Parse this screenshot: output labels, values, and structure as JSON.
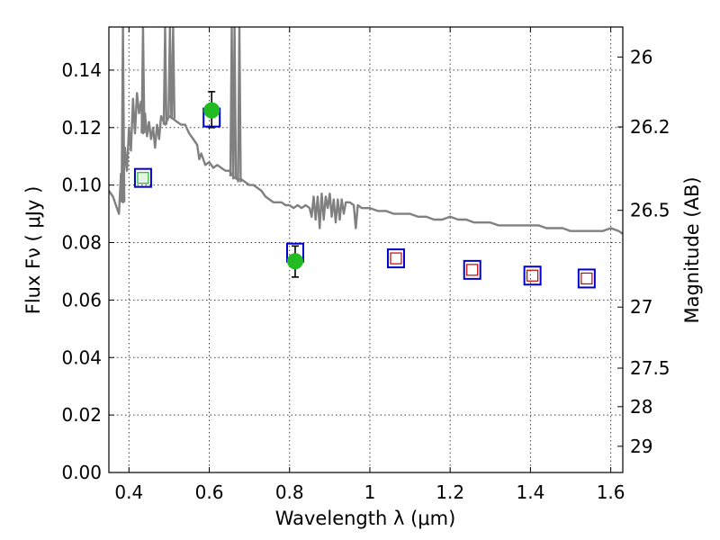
{
  "chart_data": {
    "type": "scatter",
    "xlabel": "Wavelength  λ (μm)",
    "ylabel": "Flux  Fν  ( μJy )",
    "y2label": "Magnitude (AB)",
    "xlim": [
      0.35,
      1.63
    ],
    "ylim": [
      0.0,
      0.155
    ],
    "x_ticks": [
      0.4,
      0.6,
      0.8,
      1.0,
      1.2,
      1.4,
      1.6
    ],
    "x_tick_labels": [
      "0.4",
      "0.6",
      "0.8",
      "1",
      "1.2",
      "1.4",
      "1.6"
    ],
    "y_ticks": [
      0.0,
      0.02,
      0.04,
      0.06,
      0.08,
      0.1,
      0.12,
      0.14
    ],
    "y_tick_labels": [
      "0.00",
      "0.02",
      "0.04",
      "0.06",
      "0.08",
      "0.10",
      "0.12",
      "0.14"
    ],
    "mag_ticks": [
      26,
      26.2,
      26.5,
      27,
      27.5,
      28,
      29
    ],
    "mag_tick_labels": [
      "26",
      "26.2",
      "26.5",
      "27",
      "27.5",
      "28",
      "29"
    ],
    "grid": true,
    "colors": {
      "model": "#808080",
      "observed": "#22bb22",
      "model_photometry": "#0000cc",
      "upper_limits": "#cc0000",
      "errorbar": "#000000"
    },
    "series": [
      {
        "kind": "model_spectrum",
        "points": [
          [
            0.35,
            0.098
          ],
          [
            0.36,
            0.096
          ],
          [
            0.37,
            0.092
          ],
          [
            0.375,
            0.09
          ],
          [
            0.38,
            0.104
          ],
          [
            0.385,
            0.094
          ],
          [
            0.39,
            0.113
          ],
          [
            0.395,
            0.105
          ],
          [
            0.4,
            0.12
          ],
          [
            0.405,
            0.112
          ],
          [
            0.41,
            0.13
          ],
          [
            0.415,
            0.118
          ],
          [
            0.42,
            0.132
          ],
          [
            0.425,
            0.125
          ],
          [
            0.43,
            0.129
          ],
          [
            0.435,
            0.118
          ],
          [
            0.44,
            0.125
          ],
          [
            0.445,
            0.117
          ],
          [
            0.45,
            0.122
          ],
          [
            0.455,
            0.116
          ],
          [
            0.46,
            0.12
          ],
          [
            0.465,
            0.113
          ],
          [
            0.47,
            0.121
          ],
          [
            0.475,
            0.116
          ],
          [
            0.48,
            0.124
          ],
          [
            0.49,
            0.121
          ],
          [
            0.5,
            0.124
          ],
          [
            0.51,
            0.123
          ],
          [
            0.52,
            0.122
          ],
          [
            0.53,
            0.121
          ],
          [
            0.54,
            0.121
          ],
          [
            0.55,
            0.118
          ],
          [
            0.56,
            0.116
          ],
          [
            0.57,
            0.114
          ],
          [
            0.575,
            0.109
          ],
          [
            0.58,
            0.111
          ],
          [
            0.59,
            0.107
          ],
          [
            0.6,
            0.108
          ],
          [
            0.61,
            0.106
          ],
          [
            0.62,
            0.107
          ],
          [
            0.63,
            0.106
          ],
          [
            0.64,
            0.105
          ],
          [
            0.65,
            0.105
          ],
          [
            0.66,
            0.103
          ],
          [
            0.67,
            0.102
          ],
          [
            0.68,
            0.102
          ],
          [
            0.69,
            0.101
          ],
          [
            0.7,
            0.1
          ],
          [
            0.71,
            0.1
          ],
          [
            0.72,
            0.099
          ],
          [
            0.73,
            0.098
          ],
          [
            0.74,
            0.096
          ],
          [
            0.75,
            0.095
          ],
          [
            0.76,
            0.094
          ],
          [
            0.77,
            0.094
          ],
          [
            0.78,
            0.094
          ],
          [
            0.79,
            0.093
          ],
          [
            0.8,
            0.093
          ],
          [
            0.81,
            0.092
          ],
          [
            0.82,
            0.093
          ],
          [
            0.83,
            0.092
          ],
          [
            0.84,
            0.093
          ],
          [
            0.85,
            0.092
          ],
          [
            0.855,
            0.089
          ],
          [
            0.86,
            0.096
          ],
          [
            0.865,
            0.088
          ],
          [
            0.87,
            0.096
          ],
          [
            0.875,
            0.085
          ],
          [
            0.88,
            0.097
          ],
          [
            0.885,
            0.088
          ],
          [
            0.89,
            0.096
          ],
          [
            0.895,
            0.092
          ],
          [
            0.9,
            0.097
          ],
          [
            0.905,
            0.089
          ],
          [
            0.91,
            0.095
          ],
          [
            0.915,
            0.087
          ],
          [
            0.92,
            0.095
          ],
          [
            0.925,
            0.088
          ],
          [
            0.93,
            0.095
          ],
          [
            0.935,
            0.09
          ],
          [
            0.94,
            0.094
          ],
          [
            0.95,
            0.094
          ],
          [
            0.96,
            0.093
          ],
          [
            0.965,
            0.085
          ],
          [
            0.97,
            0.093
          ],
          [
            0.98,
            0.092
          ],
          [
            1.0,
            0.092
          ],
          [
            1.02,
            0.091
          ],
          [
            1.04,
            0.091
          ],
          [
            1.06,
            0.09
          ],
          [
            1.08,
            0.09
          ],
          [
            1.1,
            0.09
          ],
          [
            1.12,
            0.089
          ],
          [
            1.14,
            0.089
          ],
          [
            1.16,
            0.088
          ],
          [
            1.18,
            0.088
          ],
          [
            1.2,
            0.089
          ],
          [
            1.22,
            0.088
          ],
          [
            1.24,
            0.088
          ],
          [
            1.26,
            0.087
          ],
          [
            1.28,
            0.087
          ],
          [
            1.3,
            0.087
          ],
          [
            1.32,
            0.086
          ],
          [
            1.34,
            0.086
          ],
          [
            1.36,
            0.086
          ],
          [
            1.38,
            0.086
          ],
          [
            1.4,
            0.086
          ],
          [
            1.42,
            0.086
          ],
          [
            1.44,
            0.085
          ],
          [
            1.46,
            0.085
          ],
          [
            1.48,
            0.085
          ],
          [
            1.5,
            0.084
          ],
          [
            1.52,
            0.084
          ],
          [
            1.54,
            0.084
          ],
          [
            1.56,
            0.084
          ],
          [
            1.58,
            0.084
          ],
          [
            1.6,
            0.085
          ],
          [
            1.62,
            0.084
          ],
          [
            1.63,
            0.083
          ]
        ],
        "emission_lines": [
          {
            "x": 0.385,
            "peak": 0.155,
            "base": 0.094
          },
          {
            "x": 0.435,
            "peak": 0.155,
            "base": 0.118
          },
          {
            "x": 0.49,
            "peak": 0.155,
            "base": 0.121
          },
          {
            "x": 0.502,
            "peak": 0.155,
            "base": 0.124
          },
          {
            "x": 0.51,
            "peak": 0.155,
            "base": 0.123
          },
          {
            "x": 0.656,
            "peak": 0.155,
            "base": 0.103
          },
          {
            "x": 0.663,
            "peak": 0.155,
            "base": 0.102
          },
          {
            "x": 0.675,
            "peak": 0.155,
            "base": 0.101
          }
        ]
      },
      {
        "kind": "model_photometry",
        "points": [
          [
            0.435,
            0.1025
          ],
          [
            0.606,
            0.1235
          ],
          [
            0.814,
            0.0765
          ],
          [
            1.065,
            0.0745
          ],
          [
            1.255,
            0.0705
          ],
          [
            1.405,
            0.0685
          ],
          [
            1.54,
            0.0675
          ]
        ]
      },
      {
        "kind": "observed",
        "points": [
          [
            0.606,
            0.126
          ],
          [
            0.814,
            0.0735
          ]
        ],
        "errors": [
          [
            0.12,
            0.1325
          ],
          [
            0.068,
            0.0788
          ]
        ]
      },
      {
        "kind": "upper_limits",
        "points": [
          [
            0.435,
            0.1025
          ],
          [
            1.065,
            0.0745
          ],
          [
            1.255,
            0.0705
          ],
          [
            1.405,
            0.0685
          ],
          [
            1.54,
            0.0675
          ]
        ]
      }
    ]
  }
}
